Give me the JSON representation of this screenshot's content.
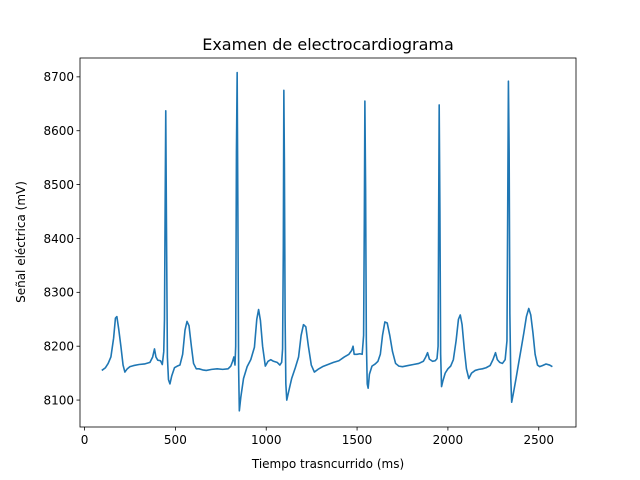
{
  "chart_data": {
    "type": "line",
    "title": "Examen de electrocardiograma",
    "xlabel": "Tiempo trasncurrido (ms)",
    "ylabel": "Señal eléctrica (mV)",
    "xlim": [
      -25,
      2705
    ],
    "ylim": [
      8050,
      8735
    ],
    "xticks": [
      0,
      500,
      1000,
      1500,
      2000,
      2500
    ],
    "yticks": [
      8100,
      8200,
      8300,
      8400,
      8500,
      8600,
      8700
    ],
    "grid": false,
    "legend": "none",
    "series": [
      {
        "color": "#1f77b4",
        "points": [
          [
            95,
            8155
          ],
          [
            115,
            8160
          ],
          [
            130,
            8168
          ],
          [
            145,
            8180
          ],
          [
            160,
            8215
          ],
          [
            170,
            8252
          ],
          [
            178,
            8255
          ],
          [
            188,
            8232
          ],
          [
            200,
            8200
          ],
          [
            212,
            8165
          ],
          [
            222,
            8152
          ],
          [
            235,
            8158
          ],
          [
            250,
            8162
          ],
          [
            270,
            8164
          ],
          [
            300,
            8166
          ],
          [
            330,
            8167
          ],
          [
            360,
            8170
          ],
          [
            375,
            8180
          ],
          [
            385,
            8195
          ],
          [
            393,
            8180
          ],
          [
            403,
            8174
          ],
          [
            418,
            8173
          ],
          [
            428,
            8166
          ],
          [
            436,
            8190
          ],
          [
            440,
            8250
          ],
          [
            444,
            8480
          ],
          [
            447,
            8637
          ],
          [
            451,
            8420
          ],
          [
            456,
            8180
          ],
          [
            462,
            8138
          ],
          [
            470,
            8130
          ],
          [
            480,
            8145
          ],
          [
            495,
            8160
          ],
          [
            510,
            8163
          ],
          [
            525,
            8165
          ],
          [
            540,
            8185
          ],
          [
            553,
            8230
          ],
          [
            564,
            8246
          ],
          [
            575,
            8238
          ],
          [
            588,
            8200
          ],
          [
            600,
            8168
          ],
          [
            615,
            8158
          ],
          [
            630,
            8158
          ],
          [
            650,
            8156
          ],
          [
            670,
            8155
          ],
          [
            700,
            8157
          ],
          [
            730,
            8158
          ],
          [
            760,
            8157
          ],
          [
            790,
            8158
          ],
          [
            805,
            8163
          ],
          [
            815,
            8172
          ],
          [
            822,
            8180
          ],
          [
            828,
            8165
          ],
          [
            832,
            8200
          ],
          [
            836,
            8560
          ],
          [
            840,
            8708
          ],
          [
            844,
            8450
          ],
          [
            848,
            8160
          ],
          [
            852,
            8080
          ],
          [
            860,
            8105
          ],
          [
            875,
            8140
          ],
          [
            895,
            8162
          ],
          [
            915,
            8175
          ],
          [
            935,
            8198
          ],
          [
            948,
            8250
          ],
          [
            958,
            8268
          ],
          [
            968,
            8248
          ],
          [
            980,
            8200
          ],
          [
            995,
            8163
          ],
          [
            1010,
            8172
          ],
          [
            1025,
            8175
          ],
          [
            1040,
            8172
          ],
          [
            1060,
            8170
          ],
          [
            1075,
            8165
          ],
          [
            1085,
            8170
          ],
          [
            1090,
            8195
          ],
          [
            1094,
            8380
          ],
          [
            1097,
            8675
          ],
          [
            1100,
            8540
          ],
          [
            1104,
            8250
          ],
          [
            1108,
            8130
          ],
          [
            1113,
            8100
          ],
          [
            1123,
            8115
          ],
          [
            1140,
            8140
          ],
          [
            1160,
            8160
          ],
          [
            1178,
            8180
          ],
          [
            1192,
            8220
          ],
          [
            1205,
            8240
          ],
          [
            1218,
            8236
          ],
          [
            1232,
            8200
          ],
          [
            1248,
            8165
          ],
          [
            1265,
            8152
          ],
          [
            1285,
            8157
          ],
          [
            1310,
            8162
          ],
          [
            1340,
            8166
          ],
          [
            1370,
            8170
          ],
          [
            1400,
            8173
          ],
          [
            1430,
            8180
          ],
          [
            1455,
            8185
          ],
          [
            1470,
            8192
          ],
          [
            1478,
            8200
          ],
          [
            1484,
            8185
          ],
          [
            1500,
            8185
          ],
          [
            1515,
            8186
          ],
          [
            1528,
            8185
          ],
          [
            1536,
            8220
          ],
          [
            1540,
            8440
          ],
          [
            1543,
            8655
          ],
          [
            1547,
            8490
          ],
          [
            1551,
            8210
          ],
          [
            1556,
            8130
          ],
          [
            1561,
            8122
          ],
          [
            1568,
            8148
          ],
          [
            1582,
            8163
          ],
          [
            1600,
            8167
          ],
          [
            1615,
            8172
          ],
          [
            1628,
            8185
          ],
          [
            1640,
            8220
          ],
          [
            1653,
            8245
          ],
          [
            1666,
            8243
          ],
          [
            1680,
            8220
          ],
          [
            1695,
            8190
          ],
          [
            1712,
            8168
          ],
          [
            1730,
            8163
          ],
          [
            1750,
            8162
          ],
          [
            1780,
            8164
          ],
          [
            1810,
            8166
          ],
          [
            1840,
            8168
          ],
          [
            1865,
            8172
          ],
          [
            1878,
            8180
          ],
          [
            1888,
            8188
          ],
          [
            1898,
            8176
          ],
          [
            1915,
            8172
          ],
          [
            1930,
            8173
          ],
          [
            1940,
            8177
          ],
          [
            1946,
            8200
          ],
          [
            1949,
            8440
          ],
          [
            1952,
            8648
          ],
          [
            1956,
            8450
          ],
          [
            1960,
            8185
          ],
          [
            1965,
            8125
          ],
          [
            1972,
            8135
          ],
          [
            1985,
            8150
          ],
          [
            2000,
            8158
          ],
          [
            2015,
            8163
          ],
          [
            2030,
            8175
          ],
          [
            2045,
            8210
          ],
          [
            2058,
            8250
          ],
          [
            2068,
            8258
          ],
          [
            2078,
            8240
          ],
          [
            2090,
            8195
          ],
          [
            2102,
            8158
          ],
          [
            2115,
            8140
          ],
          [
            2130,
            8150
          ],
          [
            2150,
            8155
          ],
          [
            2170,
            8157
          ],
          [
            2190,
            8158
          ],
          [
            2210,
            8160
          ],
          [
            2232,
            8164
          ],
          [
            2248,
            8175
          ],
          [
            2262,
            8188
          ],
          [
            2272,
            8175
          ],
          [
            2285,
            8170
          ],
          [
            2300,
            8168
          ],
          [
            2315,
            8175
          ],
          [
            2325,
            8210
          ],
          [
            2329,
            8450
          ],
          [
            2333,
            8692
          ],
          [
            2337,
            8560
          ],
          [
            2341,
            8260
          ],
          [
            2346,
            8140
          ],
          [
            2351,
            8096
          ],
          [
            2360,
            8112
          ],
          [
            2375,
            8140
          ],
          [
            2390,
            8170
          ],
          [
            2403,
            8195
          ],
          [
            2418,
            8225
          ],
          [
            2432,
            8255
          ],
          [
            2445,
            8270
          ],
          [
            2456,
            8258
          ],
          [
            2468,
            8225
          ],
          [
            2480,
            8185
          ],
          [
            2493,
            8165
          ],
          [
            2505,
            8162
          ],
          [
            2520,
            8164
          ],
          [
            2540,
            8167
          ],
          [
            2560,
            8165
          ],
          [
            2575,
            8162
          ]
        ]
      }
    ]
  }
}
